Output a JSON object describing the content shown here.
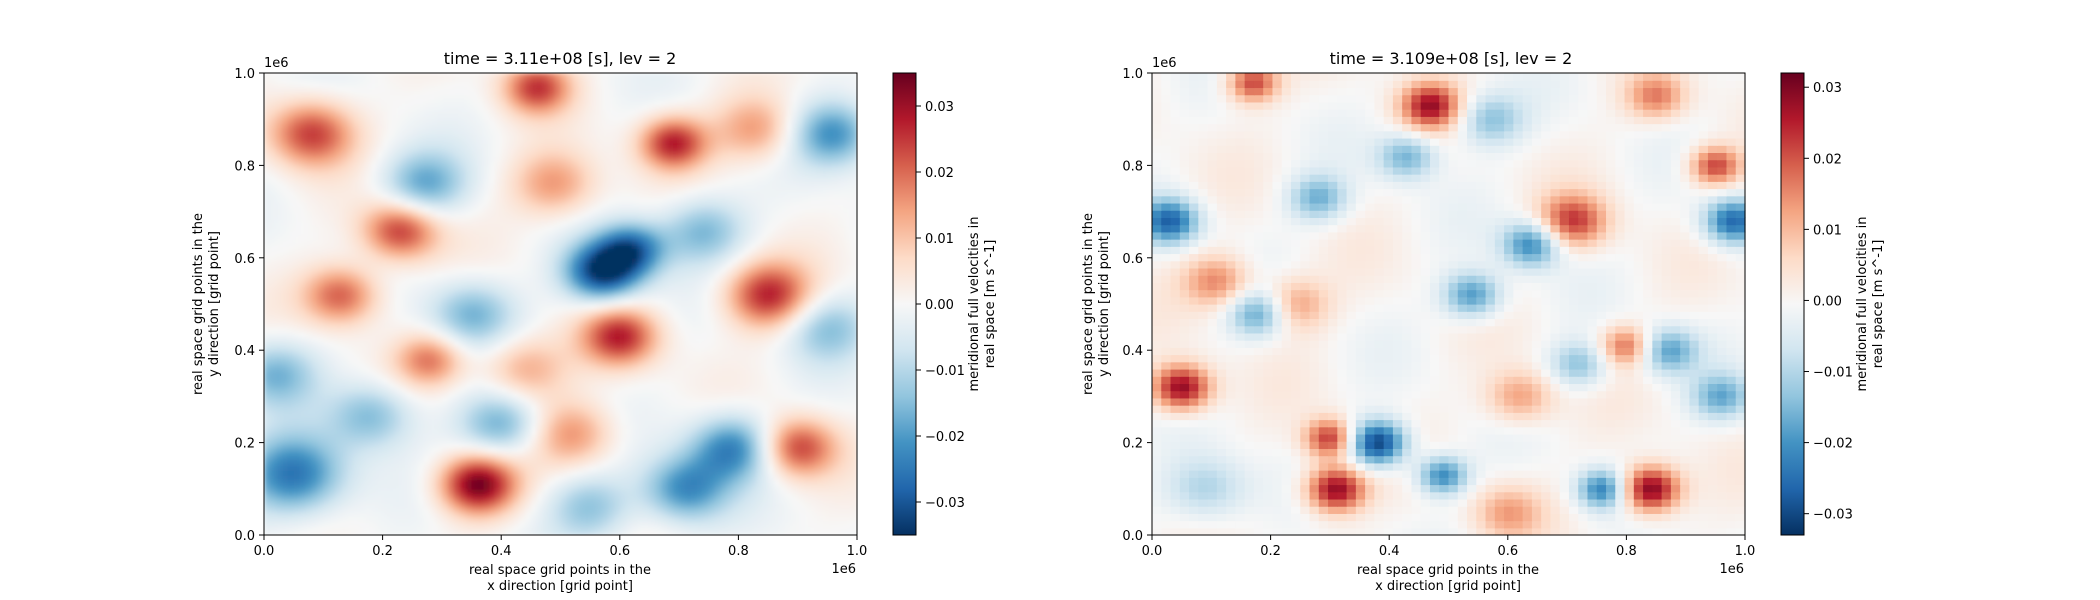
{
  "chart_data": [
    {
      "type": "heatmap",
      "title": "time = 3.11e+08 [s], lev = 2",
      "xlabel_line1": "real space grid points in the",
      "xlabel_line2": "x direction [grid point]",
      "ylabel_line1": "real space grid points in the",
      "ylabel_line2": "y direction [grid point]",
      "x_offset_text": "1e6",
      "y_offset_text": "1e6",
      "xlim": [
        0,
        1.0
      ],
      "ylim": [
        0,
        1.0
      ],
      "xticks": [
        "0.0",
        "0.2",
        "0.4",
        "0.6",
        "0.8",
        "1.0"
      ],
      "yticks": [
        "0.0",
        "0.2",
        "0.4",
        "0.6",
        "0.8",
        "1.0"
      ],
      "colorbar_label_line1": "meridional full velocities in",
      "colorbar_label_line2": "real space [m s^-1]",
      "colorbar_range": [
        -0.035,
        0.035
      ],
      "colorbar_ticks": [
        "−0.03",
        "−0.02",
        "−0.01",
        "0.00",
        "0.01",
        "0.02",
        "0.03"
      ],
      "colorbar_tick_values": [
        -0.03,
        -0.02,
        -0.01,
        0.0,
        0.01,
        0.02,
        0.03
      ],
      "colormap": "RdBu_r",
      "grid_cells": 100,
      "smooth": true,
      "features": [
        {
          "x": 0.36,
          "y": 0.11,
          "v": 0.034,
          "s": 0.045
        },
        {
          "x": 0.57,
          "y": 0.57,
          "v": -0.034,
          "s": 0.045
        },
        {
          "x": 0.62,
          "y": 0.62,
          "v": -0.025,
          "s": 0.04
        },
        {
          "x": 0.08,
          "y": 0.87,
          "v": 0.024,
          "s": 0.05
        },
        {
          "x": 0.23,
          "y": 0.66,
          "v": 0.025,
          "s": 0.045
        },
        {
          "x": 0.46,
          "y": 0.97,
          "v": 0.024,
          "s": 0.04
        },
        {
          "x": 0.69,
          "y": 0.85,
          "v": 0.027,
          "s": 0.04
        },
        {
          "x": 0.85,
          "y": 0.52,
          "v": 0.027,
          "s": 0.05
        },
        {
          "x": 0.6,
          "y": 0.43,
          "v": 0.026,
          "s": 0.045
        },
        {
          "x": 0.13,
          "y": 0.52,
          "v": 0.022,
          "s": 0.045
        },
        {
          "x": 0.9,
          "y": 0.19,
          "v": 0.024,
          "s": 0.045
        },
        {
          "x": 0.05,
          "y": 0.13,
          "v": -0.026,
          "s": 0.06
        },
        {
          "x": 0.79,
          "y": 0.19,
          "v": -0.024,
          "s": 0.05
        },
        {
          "x": 0.71,
          "y": 0.1,
          "v": -0.022,
          "s": 0.05
        },
        {
          "x": 0.96,
          "y": 0.87,
          "v": -0.022,
          "s": 0.05
        },
        {
          "x": 0.27,
          "y": 0.76,
          "v": -0.018,
          "s": 0.05
        },
        {
          "x": 0.4,
          "y": 0.24,
          "v": -0.018,
          "s": 0.05
        },
        {
          "x": 0.35,
          "y": 0.48,
          "v": -0.016,
          "s": 0.05
        },
        {
          "x": 0.74,
          "y": 0.66,
          "v": -0.016,
          "s": 0.05
        },
        {
          "x": 0.49,
          "y": 0.76,
          "v": 0.016,
          "s": 0.05
        },
        {
          "x": 0.02,
          "y": 0.35,
          "v": -0.016,
          "s": 0.05
        },
        {
          "x": 0.28,
          "y": 0.38,
          "v": 0.018,
          "s": 0.04
        },
        {
          "x": 0.18,
          "y": 0.26,
          "v": -0.016,
          "s": 0.05
        },
        {
          "x": 0.52,
          "y": 0.22,
          "v": 0.016,
          "s": 0.05
        },
        {
          "x": 0.95,
          "y": 0.45,
          "v": -0.014,
          "s": 0.05
        },
        {
          "x": 0.83,
          "y": 0.88,
          "v": 0.016,
          "s": 0.05
        },
        {
          "x": 0.55,
          "y": 0.06,
          "v": -0.014,
          "s": 0.05
        },
        {
          "x": 0.44,
          "y": 0.36,
          "v": 0.014,
          "s": 0.05
        }
      ]
    },
    {
      "type": "heatmap",
      "title": "time = 3.109e+08 [s], lev = 2",
      "xlabel_line1": "real space grid points in the",
      "xlabel_line2": "x direction [grid point]",
      "ylabel_line1": "real space grid points in the",
      "ylabel_line2": "y direction [grid point]",
      "x_offset_text": "1e6",
      "y_offset_text": "1e6",
      "xlim": [
        0,
        1.0
      ],
      "ylim": [
        0,
        1.0
      ],
      "xticks": [
        "0.0",
        "0.2",
        "0.4",
        "0.6",
        "0.8",
        "1.0"
      ],
      "yticks": [
        "0.0",
        "0.2",
        "0.4",
        "0.6",
        "0.8",
        "1.0"
      ],
      "colorbar_label_line1": "meridional full velocities in",
      "colorbar_label_line2": "real space [m s^-1]",
      "colorbar_range": [
        -0.033,
        0.032
      ],
      "colorbar_ticks": [
        "−0.03",
        "−0.02",
        "−0.01",
        "0.00",
        "0.01",
        "0.02",
        "0.03"
      ],
      "colorbar_tick_values": [
        -0.03,
        -0.02,
        -0.01,
        0.0,
        0.01,
        0.02,
        0.03
      ],
      "colormap": "RdBu_r",
      "grid_cells": 64,
      "smooth": false,
      "features": [
        {
          "x": 0.05,
          "y": 0.32,
          "v": 0.03,
          "s": 0.035
        },
        {
          "x": 0.31,
          "y": 0.1,
          "v": 0.03,
          "s": 0.035
        },
        {
          "x": 0.3,
          "y": 0.21,
          "v": 0.024,
          "s": 0.03
        },
        {
          "x": 0.38,
          "y": 0.2,
          "v": -0.032,
          "s": 0.035
        },
        {
          "x": 0.84,
          "y": 0.1,
          "v": 0.032,
          "s": 0.035
        },
        {
          "x": 0.47,
          "y": 0.93,
          "v": 0.026,
          "s": 0.035
        },
        {
          "x": 0.17,
          "y": 0.98,
          "v": 0.022,
          "s": 0.03
        },
        {
          "x": 0.71,
          "y": 0.68,
          "v": 0.022,
          "s": 0.04
        },
        {
          "x": 0.95,
          "y": 0.8,
          "v": 0.022,
          "s": 0.03
        },
        {
          "x": 0.8,
          "y": 0.41,
          "v": 0.018,
          "s": 0.03
        },
        {
          "x": 0.03,
          "y": 0.68,
          "v": -0.026,
          "s": 0.035
        },
        {
          "x": 0.98,
          "y": 0.68,
          "v": -0.026,
          "s": 0.035
        },
        {
          "x": 0.64,
          "y": 0.63,
          "v": -0.022,
          "s": 0.035
        },
        {
          "x": 0.49,
          "y": 0.13,
          "v": -0.022,
          "s": 0.03
        },
        {
          "x": 0.76,
          "y": 0.1,
          "v": -0.022,
          "s": 0.03
        },
        {
          "x": 0.54,
          "y": 0.52,
          "v": -0.02,
          "s": 0.035
        },
        {
          "x": 0.87,
          "y": 0.4,
          "v": -0.018,
          "s": 0.035
        },
        {
          "x": 0.96,
          "y": 0.3,
          "v": -0.016,
          "s": 0.035
        },
        {
          "x": 0.28,
          "y": 0.73,
          "v": -0.016,
          "s": 0.035
        },
        {
          "x": 0.18,
          "y": 0.48,
          "v": -0.018,
          "s": 0.035
        },
        {
          "x": 0.43,
          "y": 0.82,
          "v": -0.016,
          "s": 0.035
        },
        {
          "x": 0.11,
          "y": 0.55,
          "v": 0.016,
          "s": 0.04
        },
        {
          "x": 0.62,
          "y": 0.3,
          "v": 0.014,
          "s": 0.04
        },
        {
          "x": 0.72,
          "y": 0.37,
          "v": -0.014,
          "s": 0.035
        },
        {
          "x": 0.24,
          "y": 0.5,
          "v": 0.014,
          "s": 0.04
        },
        {
          "x": 0.57,
          "y": 0.9,
          "v": -0.014,
          "s": 0.04
        },
        {
          "x": 0.85,
          "y": 0.95,
          "v": 0.016,
          "s": 0.035
        },
        {
          "x": 0.09,
          "y": 0.1,
          "v": -0.012,
          "s": 0.05
        },
        {
          "x": 0.6,
          "y": 0.05,
          "v": 0.012,
          "s": 0.04
        }
      ]
    }
  ]
}
